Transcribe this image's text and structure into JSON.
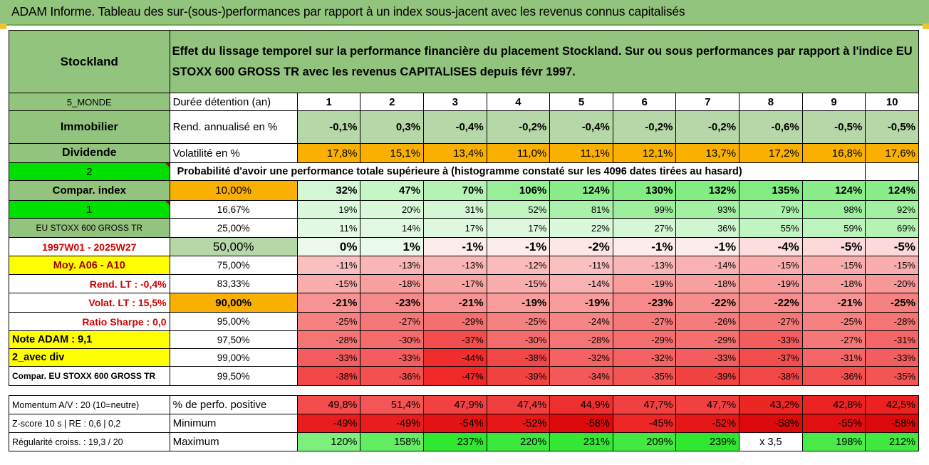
{
  "banner": {
    "title": "ADAM Informe. Tableau des sur-(sous-)performances par rapport à un index sous-jacent avec les revenus connus capitalisés"
  },
  "header": {
    "stock": "Stockland",
    "description_line1": "Effet du lissage temporel sur la performance financière du placement Stockland. Sur ou sous performances par rapport à l'indice EU",
    "description_line2": "STOXX 600 GROSS TR avec les revenus CAPITALISES depuis févr 1997."
  },
  "side": {
    "zone": "5_MONDE",
    "sector": "Immobilier",
    "type": "Dividende",
    "choice2": "2",
    "compar_index": "Compar. index",
    "choice1": "1",
    "index_name": "EU STOXX 600 GROSS TR",
    "period": "1997W01 - 2025W27",
    "moy": "Moy. A06 - A10",
    "rend_lt": "Rend. LT :   -0,4%",
    "volat_lt": "Volat. LT :   15,5%",
    "sharpe": "Ratio Sharpe :   0,0",
    "note": "Note ADAM : 9,1",
    "avec_div": "2_avec div",
    "compar_long": "Compar. EU STOXX 600 GROSS TR",
    "momentum": "Momentum A/V : 20 (10=neutre)",
    "zscore": "Z-score 10 s | RE : 0,6 | 0,2",
    "regularite": "Régularité croiss. : 19,3 / 20"
  },
  "labels": {
    "duree": "Durée détention (an)",
    "rend": "Rend. annualisé en %",
    "volat": "Volatilité en %",
    "proba": "Probabilité d'avoir une performance totale supérieure à (histogramme constaté sur les 4096 dates tirées au hasard)",
    "perf_pos": "% de perfo. positive",
    "minimum": "Minimum",
    "maximum": "Maximum"
  },
  "years": [
    "1",
    "2",
    "3",
    "4",
    "5",
    "6",
    "7",
    "8",
    "9",
    "10"
  ],
  "rend": [
    "-0,1%",
    "0,3%",
    "-0,4%",
    "-0,2%",
    "-0,4%",
    "-0,2%",
    "-0,2%",
    "-0,6%",
    "-0,5%",
    "-0,5%"
  ],
  "volat": [
    "17,8%",
    "15,1%",
    "13,4%",
    "11,0%",
    "11,1%",
    "12,1%",
    "13,7%",
    "17,2%",
    "16,8%",
    "17,6%"
  ],
  "rows": [
    {
      "pct": "10,00%",
      "vals": [
        "32%",
        "47%",
        "70%",
        "106%",
        "124%",
        "130%",
        "132%",
        "135%",
        "124%",
        "124%"
      ]
    },
    {
      "pct": "16,67%",
      "vals": [
        "19%",
        "20%",
        "31%",
        "52%",
        "81%",
        "99%",
        "93%",
        "79%",
        "98%",
        "92%"
      ]
    },
    {
      "pct": "25,00%",
      "vals": [
        "11%",
        "14%",
        "17%",
        "17%",
        "22%",
        "27%",
        "36%",
        "55%",
        "59%",
        "69%"
      ]
    },
    {
      "pct": "50,00%",
      "vals": [
        "0%",
        "1%",
        "-1%",
        "-1%",
        "-2%",
        "-1%",
        "-1%",
        "-4%",
        "-5%",
        "-5%"
      ]
    },
    {
      "pct": "75,00%",
      "vals": [
        "-11%",
        "-13%",
        "-13%",
        "-12%",
        "-11%",
        "-13%",
        "-14%",
        "-15%",
        "-15%",
        "-15%"
      ]
    },
    {
      "pct": "83,33%",
      "vals": [
        "-15%",
        "-18%",
        "-17%",
        "-15%",
        "-14%",
        "-19%",
        "-18%",
        "-19%",
        "-18%",
        "-20%"
      ]
    },
    {
      "pct": "90,00%",
      "vals": [
        "-21%",
        "-23%",
        "-21%",
        "-19%",
        "-19%",
        "-23%",
        "-22%",
        "-22%",
        "-21%",
        "-25%"
      ]
    },
    {
      "pct": "95,00%",
      "vals": [
        "-25%",
        "-27%",
        "-29%",
        "-25%",
        "-24%",
        "-27%",
        "-26%",
        "-27%",
        "-25%",
        "-28%"
      ]
    },
    {
      "pct": "97,50%",
      "vals": [
        "-28%",
        "-30%",
        "-37%",
        "-30%",
        "-28%",
        "-29%",
        "-29%",
        "-33%",
        "-27%",
        "-31%"
      ]
    },
    {
      "pct": "99,00%",
      "vals": [
        "-33%",
        "-33%",
        "-44%",
        "-38%",
        "-32%",
        "-32%",
        "-33%",
        "-37%",
        "-31%",
        "-33%"
      ]
    },
    {
      "pct": "99,50%",
      "vals": [
        "-38%",
        "-36%",
        "-47%",
        "-39%",
        "-34%",
        "-35%",
        "-39%",
        "-38%",
        "-36%",
        "-35%"
      ]
    }
  ],
  "perf_pos": [
    "49,8%",
    "51,4%",
    "47,9%",
    "47,4%",
    "44,9%",
    "47,7%",
    "47,7%",
    "43,2%",
    "42,8%",
    "42,5%"
  ],
  "minimum": [
    "-49%",
    "-49%",
    "-54%",
    "-52%",
    "-58%",
    "-45%",
    "-52%",
    "-58%",
    "-55%",
    "-58%"
  ],
  "maximum": [
    "120%",
    "158%",
    "237%",
    "220%",
    "231%",
    "209%",
    "239%",
    "x 3,5",
    "198%",
    "212%"
  ],
  "colors": {
    "header_green": "#93c47d",
    "orange": "#f9b000",
    "bright_green": "#00e000",
    "yellow": "#ffff00",
    "red_text": "#d00000"
  }
}
